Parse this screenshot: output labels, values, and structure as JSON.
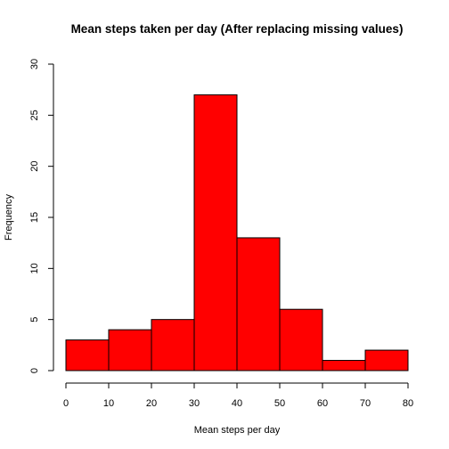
{
  "chart_data": {
    "type": "bar",
    "title": "Mean steps taken per day (After replacing missing values)",
    "xlabel": "Mean steps per day",
    "ylabel": "Frequency",
    "bins": [
      {
        "from": 0,
        "to": 10,
        "count": 3
      },
      {
        "from": 10,
        "to": 20,
        "count": 4
      },
      {
        "from": 20,
        "to": 30,
        "count": 5
      },
      {
        "from": 30,
        "to": 40,
        "count": 27
      },
      {
        "from": 40,
        "to": 50,
        "count": 13
      },
      {
        "from": 50,
        "to": 60,
        "count": 6
      },
      {
        "from": 60,
        "to": 70,
        "count": 1
      },
      {
        "from": 70,
        "to": 80,
        "count": 2
      }
    ],
    "xlim": [
      0,
      80
    ],
    "ylim": [
      0,
      30
    ],
    "xticks": [
      "0",
      "10",
      "20",
      "30",
      "40",
      "50",
      "60",
      "70",
      "80"
    ],
    "yticks": [
      "0",
      "5",
      "10",
      "15",
      "20",
      "25",
      "30"
    ],
    "bar_color": "#ff0000",
    "grid": false
  }
}
